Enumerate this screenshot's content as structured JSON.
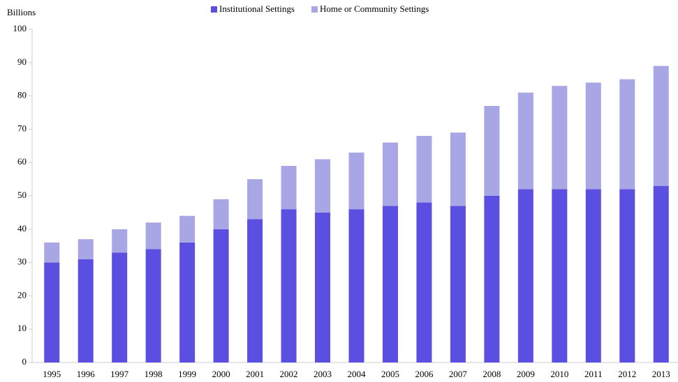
{
  "chart_data": {
    "type": "stacked_bar",
    "y_label": "Billions",
    "categories": [
      "1995",
      "1996",
      "1997",
      "1998",
      "1999",
      "2000",
      "2001",
      "2002",
      "2003",
      "2004",
      "2005",
      "2006",
      "2007",
      "2008",
      "2009",
      "2010",
      "2011",
      "2012",
      "2013"
    ],
    "series": [
      {
        "name": "Institutional Settings",
        "color": "#5a4fe0",
        "values": [
          30,
          31,
          33,
          34,
          36,
          40,
          43,
          46,
          45,
          46,
          47,
          48,
          47,
          50,
          52,
          52,
          52,
          52,
          53
        ]
      },
      {
        "name": "Home or Community Settings",
        "color": "#a8a6e4",
        "values": [
          6,
          6,
          7,
          8,
          8,
          9,
          12,
          13,
          16,
          17,
          19,
          20,
          22,
          27,
          29,
          31,
          32,
          33,
          36
        ]
      }
    ],
    "ylim": [
      0,
      100
    ],
    "yticks": [
      0,
      10,
      20,
      30,
      40,
      50,
      60,
      70,
      80,
      90,
      100
    ],
    "legend": "top"
  }
}
